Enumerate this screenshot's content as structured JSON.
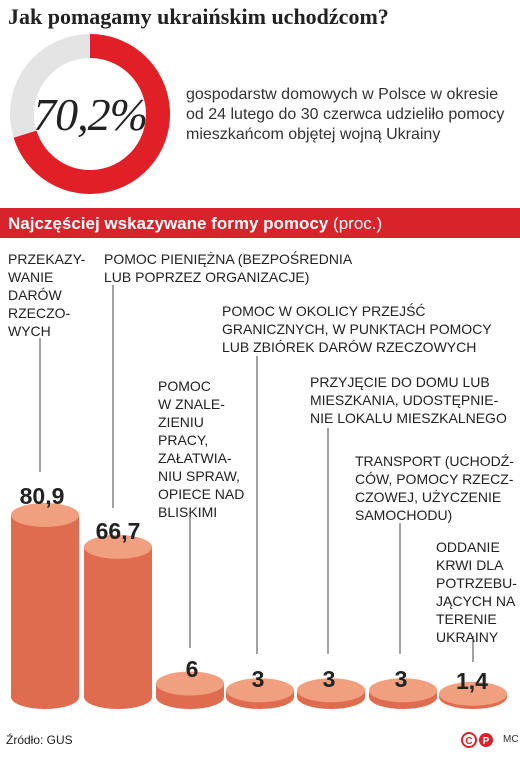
{
  "title": "Jak pomagamy ukraińskim uchodźcom?",
  "donut": {
    "value": 70.2,
    "label": "70,2%",
    "description": "gospodarstw domowych w Polsce w okresie od 24 lutego do 30 czerwca udzieliło pomocy mieszkańcom objętej wojną Ukrainy",
    "fill_color": "#e11f26",
    "track_color": "#e4e4e4"
  },
  "section": {
    "title": "Najczęściej wskazywane formy pomocy",
    "unit": "(proc.)",
    "color": "#d8232a"
  },
  "chart_data": {
    "type": "bar",
    "title": "Najczęściej wskazywane formy pomocy",
    "unit": "(proc.)",
    "categories": [
      "Przekazy-\nwanie\ndarów\nrzeczo-\nwych",
      "Pomoc pieniężna (bezpośrednia\nlub poprzez organizacje)",
      "Pomoc\nw znale-\nzieniu\npracy,\nzałatwia-\nniu spraw,\nopiece nad\nbliskimi",
      "Pomoc w okolicy przejść\ngranicznych, w punktach pomocy\nlub zbiórek darów rzeczowych",
      "Przyjęcie do domu lub\nmieszkania, udostępnie-\nnie lokalu mieszkalnego",
      "Transport (uchodź-\nców, pomocy rzecz-\nczowej, użyczenie\nsamochodu)",
      "Oddanie\nkrwi dla\npotrzebu-\njących na\nterenie\nUkrainy"
    ],
    "values": [
      80.9,
      66.7,
      6,
      3,
      3,
      3,
      1.4
    ],
    "value_labels": [
      "80,9",
      "66,7",
      "6",
      "3",
      "3",
      "3",
      "1,4"
    ],
    "colors": {
      "body": "#e06c4f",
      "top": "#f0a07e",
      "line": "#444444"
    }
  },
  "footer": {
    "source": "Źródło: GUS",
    "logo": "cp",
    "initials": "MC"
  }
}
